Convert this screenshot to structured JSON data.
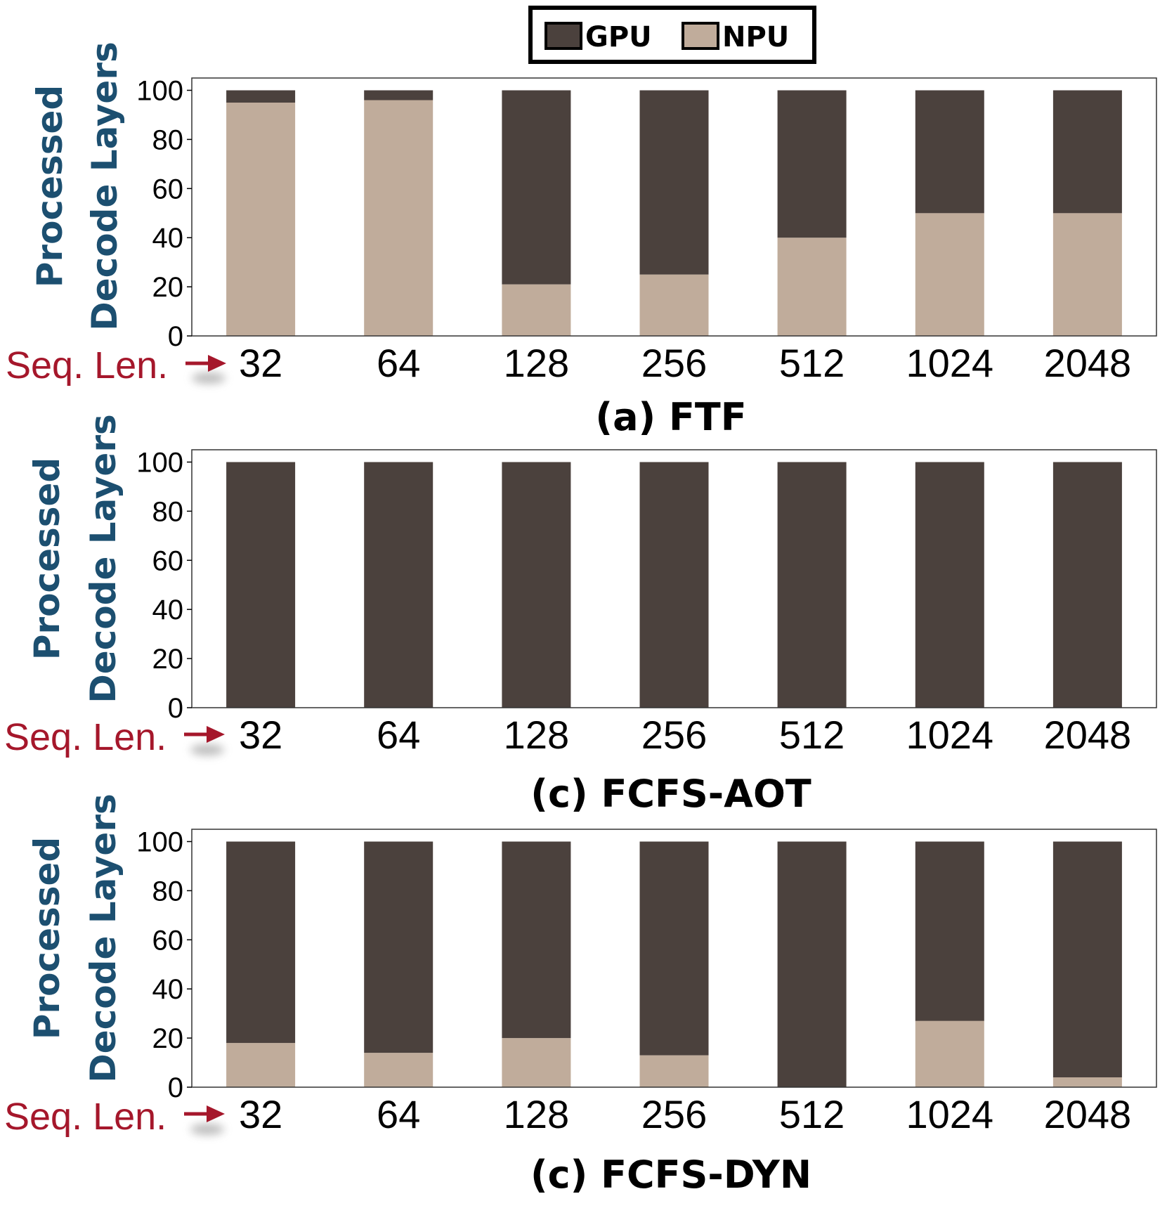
{
  "legend": {
    "items": [
      {
        "label": "GPU",
        "color": "#4b413d"
      },
      {
        "label": "NPU",
        "color": "#c0ac9b"
      }
    ]
  },
  "chart_data": [
    {
      "type": "bar",
      "stacked": true,
      "title": "(a) FTF",
      "ylabel_lines": [
        "Processed",
        "Decode Layers"
      ],
      "xlabel": "Seq. Len.",
      "categories": [
        "32",
        "64",
        "128",
        "256",
        "512",
        "1024",
        "2048"
      ],
      "yticks": [
        0,
        20,
        40,
        60,
        80,
        100
      ],
      "ylim": [
        0,
        105
      ],
      "series": [
        {
          "name": "NPU",
          "color": "#c0ac9b",
          "values": [
            95,
            96,
            21,
            25,
            40,
            50,
            50
          ]
        },
        {
          "name": "GPU",
          "color": "#4b413d",
          "values": [
            5,
            4,
            79,
            75,
            60,
            50,
            50
          ]
        }
      ]
    },
    {
      "type": "bar",
      "stacked": true,
      "title": "(c) FCFS-AOT",
      "ylabel_lines": [
        "Processed",
        "Decode Layers"
      ],
      "xlabel": "Seq. Len.",
      "categories": [
        "32",
        "64",
        "128",
        "256",
        "512",
        "1024",
        "2048"
      ],
      "yticks": [
        0,
        20,
        40,
        60,
        80,
        100
      ],
      "ylim": [
        0,
        105
      ],
      "series": [
        {
          "name": "NPU",
          "color": "#c0ac9b",
          "values": [
            0,
            0,
            0,
            0,
            0,
            0,
            0
          ]
        },
        {
          "name": "GPU",
          "color": "#4b413d",
          "values": [
            100,
            100,
            100,
            100,
            100,
            100,
            100
          ]
        }
      ]
    },
    {
      "type": "bar",
      "stacked": true,
      "title": "(c) FCFS-DYN",
      "ylabel_lines": [
        "Processed",
        "Decode Layers"
      ],
      "xlabel": "Seq. Len.",
      "categories": [
        "32",
        "64",
        "128",
        "256",
        "512",
        "1024",
        "2048"
      ],
      "yticks": [
        0,
        20,
        40,
        60,
        80,
        100
      ],
      "ylim": [
        0,
        105
      ],
      "series": [
        {
          "name": "NPU",
          "color": "#c0ac9b",
          "values": [
            18,
            14,
            20,
            13,
            0,
            27,
            4
          ]
        },
        {
          "name": "GPU",
          "color": "#4b413d",
          "values": [
            82,
            86,
            80,
            87,
            100,
            73,
            96
          ]
        }
      ]
    }
  ]
}
